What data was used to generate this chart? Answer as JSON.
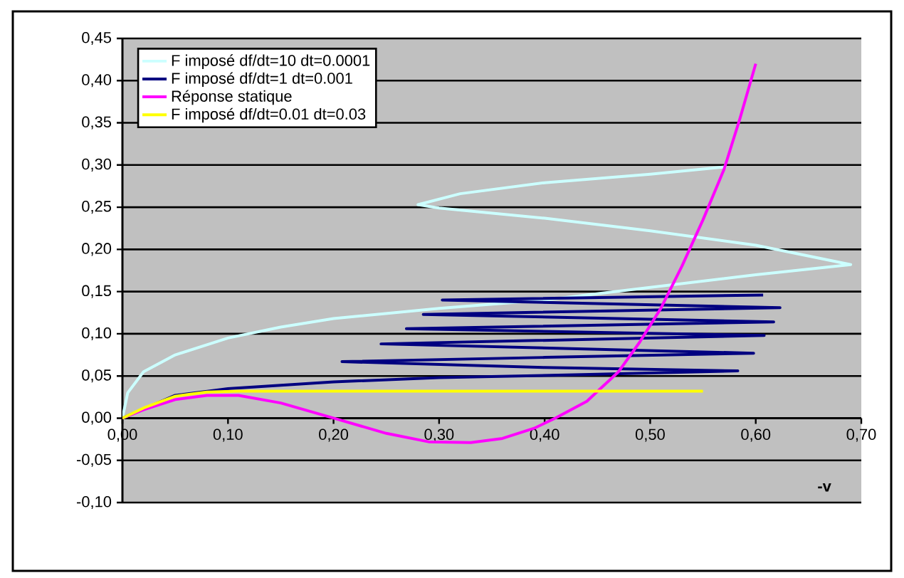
{
  "chart_data": {
    "type": "line",
    "xlabel": "-v",
    "xlim": [
      0,
      0.7
    ],
    "ylim": [
      -0.1,
      0.45
    ],
    "xticks": [
      {
        "value": 0,
        "label": "0,00"
      },
      {
        "value": 0.1,
        "label": "0,10"
      },
      {
        "value": 0.2,
        "label": "0,20"
      },
      {
        "value": 0.3,
        "label": "0,30"
      },
      {
        "value": 0.4,
        "label": "0,40"
      },
      {
        "value": 0.5,
        "label": "0,50"
      },
      {
        "value": 0.6,
        "label": "0,60"
      },
      {
        "value": 0.7,
        "label": "0,70"
      }
    ],
    "yticks": [
      {
        "value": -0.1,
        "label": "-0,10"
      },
      {
        "value": -0.05,
        "label": "-0,05"
      },
      {
        "value": 0,
        "label": "0,00"
      },
      {
        "value": 0.05,
        "label": "0,05"
      },
      {
        "value": 0.1,
        "label": "0,10"
      },
      {
        "value": 0.15,
        "label": "0,15"
      },
      {
        "value": 0.2,
        "label": "0,20"
      },
      {
        "value": 0.25,
        "label": "0,25"
      },
      {
        "value": 0.3,
        "label": "0,30"
      },
      {
        "value": 0.35,
        "label": "0,35"
      },
      {
        "value": 0.4,
        "label": "0,40"
      },
      {
        "value": 0.45,
        "label": "0,45"
      }
    ],
    "grid": "y",
    "legend": "top left",
    "series": [
      {
        "name": "F imposé df/dt=10 dt=0.0001",
        "color": "#ccffff",
        "x": [
          0,
          0.005,
          0.02,
          0.05,
          0.1,
          0.15,
          0.2,
          0.3,
          0.4,
          0.5,
          0.6,
          0.69,
          0.6,
          0.5,
          0.4,
          0.3,
          0.28,
          0.32,
          0.4,
          0.5,
          0.572
        ],
        "values": [
          0,
          0.03,
          0.055,
          0.075,
          0.095,
          0.108,
          0.118,
          0.13,
          0.14,
          0.155,
          0.17,
          0.182,
          0.205,
          0.222,
          0.237,
          0.249,
          0.253,
          0.266,
          0.279,
          0.289,
          0.298
        ]
      },
      {
        "name": "F imposé df/dt=1 dt=0.001",
        "color": "#000080",
        "x": [
          0,
          0.05,
          0.1,
          0.2,
          0.3,
          0.45,
          0.583,
          0.4,
          0.208,
          0.4,
          0.598,
          0.245,
          0.608,
          0.269,
          0.617,
          0.285,
          0.623,
          0.303,
          0.607
        ],
        "values": [
          0,
          0.027,
          0.035,
          0.043,
          0.048,
          0.052,
          0.056,
          0.06,
          0.067,
          0.072,
          0.077,
          0.088,
          0.098,
          0.106,
          0.114,
          0.123,
          0.131,
          0.14,
          0.146
        ]
      },
      {
        "name": "Réponse statique",
        "color": "#ff00ff",
        "x": [
          0,
          0.02,
          0.05,
          0.08,
          0.11,
          0.15,
          0.2,
          0.25,
          0.29,
          0.33,
          0.36,
          0.39,
          0.41,
          0.44,
          0.47,
          0.49,
          0.51,
          0.53,
          0.55,
          0.57,
          0.585,
          0.6
        ],
        "values": [
          0,
          0.01,
          0.022,
          0.027,
          0.027,
          0.018,
          0,
          -0.018,
          -0.028,
          -0.029,
          -0.024,
          -0.012,
          0,
          0.02,
          0.055,
          0.09,
          0.13,
          0.18,
          0.235,
          0.295,
          0.355,
          0.42
        ]
      },
      {
        "name": "F imposé df/dt=0.01 dt=0.03",
        "color": "#ffff00",
        "x": [
          0,
          0.02,
          0.05,
          0.08,
          0.11,
          0.55
        ],
        "values": [
          0,
          0.012,
          0.026,
          0.031,
          0.032,
          0.032
        ]
      }
    ]
  }
}
